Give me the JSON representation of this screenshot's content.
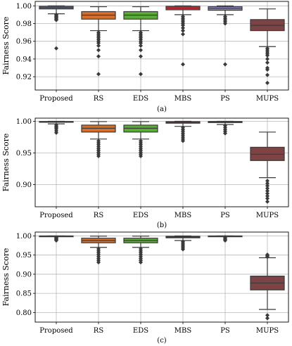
{
  "chart_data": [
    {
      "type": "box",
      "caption": "(a)",
      "ylabel": "Fairness Score",
      "ylim": [
        0.905,
        1.005
      ],
      "yticks": [
        0.92,
        0.94,
        0.96,
        0.98,
        1.0
      ],
      "ytick_labels": [
        "0.92",
        "0.94",
        "0.96",
        "0.98",
        "1.00"
      ],
      "grid": true,
      "categories": [
        "Proposed",
        "RS",
        "EDS",
        "MBS",
        "PS",
        "MUPS"
      ],
      "boxes": [
        {
          "q1": 0.9965,
          "median": 0.998,
          "q3": 0.9995,
          "whislo": 0.991,
          "whishi": 1.0,
          "fliers": [
            0.952,
            0.984,
            0.985,
            0.986,
            0.987,
            0.988,
            0.989,
            0.99
          ]
        },
        {
          "q1": 0.985,
          "median": 0.9895,
          "q3": 0.9935,
          "whislo": 0.972,
          "whishi": 0.999,
          "fliers": [
            0.923,
            0.943,
            0.95,
            0.955,
            0.958,
            0.96,
            0.962,
            0.964,
            0.966,
            0.968,
            0.97
          ]
        },
        {
          "q1": 0.985,
          "median": 0.9895,
          "q3": 0.9935,
          "whislo": 0.972,
          "whishi": 0.999,
          "fliers": [
            0.923,
            0.943,
            0.95,
            0.955,
            0.958,
            0.96,
            0.962,
            0.964,
            0.966,
            0.968,
            0.97
          ]
        },
        {
          "q1": 0.9955,
          "median": 0.9975,
          "q3": 0.9995,
          "whislo": 0.99,
          "whishi": 1.0,
          "fliers": [
            0.934,
            0.968,
            0.972,
            0.975,
            0.978,
            0.98,
            0.982,
            0.984,
            0.986,
            0.988
          ]
        },
        {
          "q1": 0.995,
          "median": 0.997,
          "q3": 0.999,
          "whislo": 0.99,
          "whishi": 1.0,
          "fliers": [
            0.934,
            0.98,
            0.982,
            0.984,
            0.986,
            0.988
          ]
        },
        {
          "q1": 0.972,
          "median": 0.978,
          "q3": 0.9845,
          "whislo": 0.954,
          "whishi": 0.9965,
          "fliers": [
            0.913,
            0.922,
            0.928,
            0.93,
            0.936,
            0.94,
            0.944,
            0.946,
            0.948,
            0.95,
            0.952
          ]
        }
      ]
    },
    {
      "type": "box",
      "caption": "(b)",
      "ylabel": "Fairness Score",
      "ylim": [
        0.865,
        1.005
      ],
      "yticks": [
        0.9,
        0.95,
        1.0
      ],
      "ytick_labels": [
        "0.90",
        "0.95",
        "1.00"
      ],
      "grid": true,
      "categories": [
        "Proposed",
        "RS",
        "EDS",
        "MBS",
        "PS",
        "MUPS"
      ],
      "boxes": [
        {
          "q1": 0.9985,
          "median": 0.999,
          "q3": 0.9998,
          "whislo": 0.996,
          "whishi": 1.0,
          "fliers": [
            0.982,
            0.985,
            0.988,
            0.99,
            0.992,
            0.994
          ]
        },
        {
          "q1": 0.983,
          "median": 0.989,
          "q3": 0.994,
          "whislo": 0.972,
          "whishi": 0.9995,
          "fliers": [
            0.945,
            0.948,
            0.951,
            0.954,
            0.957,
            0.96,
            0.963,
            0.966,
            0.969
          ]
        },
        {
          "q1": 0.983,
          "median": 0.989,
          "q3": 0.994,
          "whislo": 0.972,
          "whishi": 0.9995,
          "fliers": [
            0.945,
            0.948,
            0.951,
            0.954,
            0.957,
            0.96,
            0.963,
            0.966,
            0.969
          ]
        },
        {
          "q1": 0.997,
          "median": 0.9985,
          "q3": 0.9995,
          "whislo": 0.992,
          "whishi": 1.0,
          "fliers": [
            0.969,
            0.972,
            0.975,
            0.978,
            0.981,
            0.984,
            0.987,
            0.99
          ]
        },
        {
          "q1": 0.998,
          "median": 0.999,
          "q3": 0.9998,
          "whislo": 0.995,
          "whishi": 1.0,
          "fliers": [
            0.981,
            0.984,
            0.987,
            0.99,
            0.993
          ]
        },
        {
          "q1": 0.938,
          "median": 0.948,
          "q3": 0.959,
          "whislo": 0.911,
          "whishi": 0.983,
          "fliers": [
            0.873,
            0.878,
            0.882,
            0.886,
            0.89,
            0.894,
            0.898,
            0.902,
            0.906
          ]
        }
      ]
    },
    {
      "type": "box",
      "caption": "(c)",
      "ylabel": "Fairness Score",
      "ylim": [
        0.775,
        1.01
      ],
      "yticks": [
        0.8,
        0.85,
        0.9,
        0.95,
        1.0
      ],
      "ytick_labels": [
        "0.80",
        "0.85",
        "0.90",
        "0.95",
        "1.00"
      ],
      "grid": true,
      "categories": [
        "Proposed",
        "RS",
        "EDS",
        "MBS",
        "PS",
        "MUPS"
      ],
      "boxes": [
        {
          "q1": 0.9995,
          "median": 0.9998,
          "q3": 1.0,
          "whislo": 0.999,
          "whishi": 1.0,
          "fliers": [
            0.988,
            0.99,
            0.992,
            0.994,
            0.996
          ]
        },
        {
          "q1": 0.982,
          "median": 0.988,
          "q3": 0.994,
          "whislo": 0.97,
          "whishi": 0.9995,
          "fliers": [
            0.931,
            0.936,
            0.941,
            0.946,
            0.951,
            0.956,
            0.961,
            0.966
          ]
        },
        {
          "q1": 0.982,
          "median": 0.988,
          "q3": 0.994,
          "whislo": 0.97,
          "whishi": 0.9995,
          "fliers": [
            0.931,
            0.936,
            0.941,
            0.946,
            0.951,
            0.956,
            0.961,
            0.966
          ]
        },
        {
          "q1": 0.995,
          "median": 0.997,
          "q3": 0.999,
          "whislo": 0.988,
          "whishi": 1.0,
          "fliers": [
            0.965,
            0.969,
            0.973,
            0.977,
            0.981,
            0.985
          ]
        },
        {
          "q1": 0.9995,
          "median": 0.9998,
          "q3": 1.0,
          "whislo": 0.999,
          "whishi": 1.0,
          "fliers": [
            0.988,
            0.991,
            0.994,
            0.997
          ]
        },
        {
          "q1": 0.859,
          "median": 0.877,
          "q3": 0.895,
          "whislo": 0.808,
          "whishi": 0.943,
          "fliers": [
            0.785,
            0.793,
            0.945,
            0.948,
            0.951
          ]
        }
      ]
    }
  ],
  "colors": {
    "boxes": [
      "#4e72a7",
      "#d76f2a",
      "#5aad34",
      "#bf3a44",
      "#8c83bf",
      "#7d4345"
    ],
    "line": "#3a3a3a",
    "grid": "#b9b9b9"
  }
}
